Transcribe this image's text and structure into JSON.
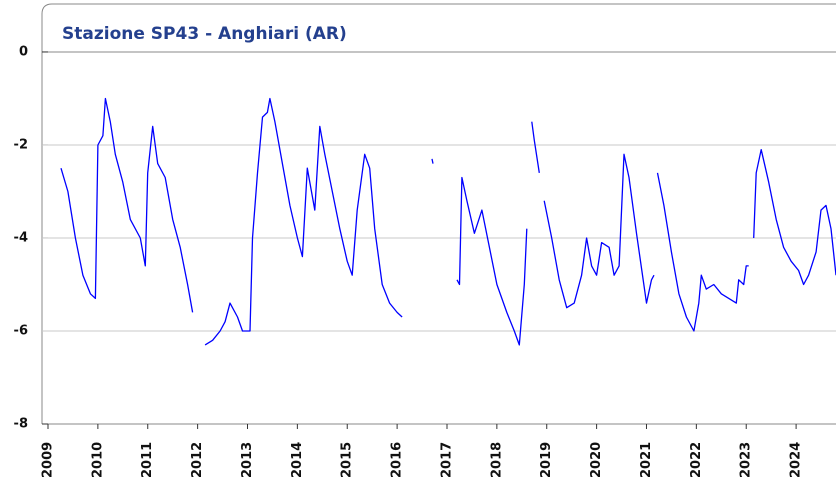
{
  "chart_data": {
    "type": "line",
    "title": "Stazione SP43 - Anghiari (AR)",
    "xlim": [
      2009,
      2024.8
    ],
    "xticks": [
      2009,
      2010,
      2011,
      2012,
      2013,
      2014,
      2015,
      2016,
      2017,
      2018,
      2019,
      2020,
      2021,
      2022,
      2023,
      2024
    ],
    "ylim": [
      -8,
      0.3
    ],
    "yticks": [
      0,
      -2,
      -4,
      -6,
      -8
    ],
    "grid": true,
    "series": [
      {
        "color": "#0000ff",
        "x": [
          2009.26,
          2009.4,
          2009.55,
          2009.7,
          2009.85,
          2009.95,
          2010.0,
          2010.1,
          2010.15,
          2010.25,
          2010.35,
          2010.5,
          2010.65,
          2010.85,
          2010.95,
          2011.0,
          2011.1,
          2011.2,
          2011.35,
          2011.5,
          2011.65,
          2011.8,
          2011.9,
          2011.95,
          2012.15,
          2012.3,
          2012.45,
          2012.55,
          2012.65,
          2012.8,
          2012.9,
          2013.05,
          2013.1,
          2013.2,
          2013.3,
          2013.4,
          2013.45,
          2013.55,
          2013.7,
          2013.85,
          2014.0,
          2014.1,
          2014.2,
          2014.35,
          2014.45,
          2014.55,
          2014.7,
          2014.85,
          2015.0,
          2015.1,
          2015.2,
          2015.35,
          2015.45,
          2015.55,
          2015.7,
          2015.85,
          2016.0,
          2016.1,
          2016.3,
          2016.7,
          2016.72,
          2016.9,
          2017.2,
          2017.25,
          2017.3,
          2017.4,
          2017.55,
          2017.7,
          2017.85,
          2018.0,
          2018.2,
          2018.35,
          2018.45,
          2018.55,
          2018.6,
          2018.65,
          2018.7,
          2018.75,
          2018.85,
          2018.9,
          2018.95,
          2019.1,
          2019.25,
          2019.4,
          2019.55,
          2019.7,
          2019.8,
          2019.9,
          2020.0,
          2020.1,
          2020.25,
          2020.35,
          2020.45,
          2020.55,
          2020.65,
          2020.8,
          2021.0,
          2021.1,
          2021.15,
          2021.18,
          2021.22,
          2021.35,
          2021.5,
          2021.65,
          2021.8,
          2021.95,
          2022.05,
          2022.1,
          2022.2,
          2022.35,
          2022.5,
          2022.65,
          2022.8,
          2022.85,
          2022.95,
          2023.0,
          2023.05,
          2023.1,
          2023.15,
          2023.2,
          2023.3,
          2023.45,
          2023.6,
          2023.75,
          2023.9,
          2024.05,
          2024.15,
          2024.25,
          2024.4,
          2024.5,
          2024.6,
          2024.7,
          2024.8
        ],
        "values": [
          -2.5,
          -3.0,
          -4.0,
          -4.8,
          -5.2,
          -5.3,
          -2.0,
          -1.8,
          -1.0,
          -1.5,
          -2.2,
          -2.8,
          -3.6,
          -4.0,
          -4.6,
          -2.6,
          -1.6,
          -2.4,
          -2.7,
          -3.6,
          -4.2,
          -5.0,
          -5.6,
          null,
          -6.3,
          -6.2,
          -6.0,
          -5.8,
          -5.4,
          -5.7,
          -6.0,
          -6.0,
          -4.0,
          -2.6,
          -1.4,
          -1.3,
          -1.0,
          -1.5,
          -2.4,
          -3.3,
          -4.0,
          -4.4,
          -2.5,
          -3.4,
          -1.6,
          -2.2,
          -3.0,
          -3.8,
          -4.5,
          -4.8,
          -3.4,
          -2.2,
          -2.5,
          -3.8,
          -5.0,
          -5.4,
          -5.6,
          -5.7,
          null,
          -2.3,
          -2.4,
          null,
          -4.9,
          -5.0,
          -2.7,
          -3.2,
          -3.9,
          -3.4,
          -4.2,
          -5.0,
          -5.6,
          -6.0,
          -6.3,
          -5.0,
          -3.8,
          null,
          -1.5,
          -1.9,
          -2.6,
          null,
          -3.2,
          -4.0,
          -4.9,
          -5.5,
          -5.4,
          -4.8,
          -4.0,
          -4.6,
          -4.8,
          -4.1,
          -4.2,
          -4.8,
          -4.6,
          -2.2,
          -2.7,
          -3.9,
          -5.4,
          -4.9,
          -4.8,
          null,
          -2.6,
          -3.3,
          -4.3,
          -5.2,
          -5.7,
          -6.0,
          -5.4,
          -4.8,
          -5.1,
          -5.0,
          -5.2,
          -5.3,
          -5.4,
          -4.9,
          -5.0,
          -4.6,
          -4.6,
          null,
          -4.0,
          -2.6,
          -2.1,
          -2.8,
          -3.6,
          -4.2,
          -4.5,
          -4.7,
          -5.0,
          -4.8,
          -4.3,
          -3.4,
          -3.3,
          -3.8,
          -4.8
        ]
      }
    ]
  }
}
